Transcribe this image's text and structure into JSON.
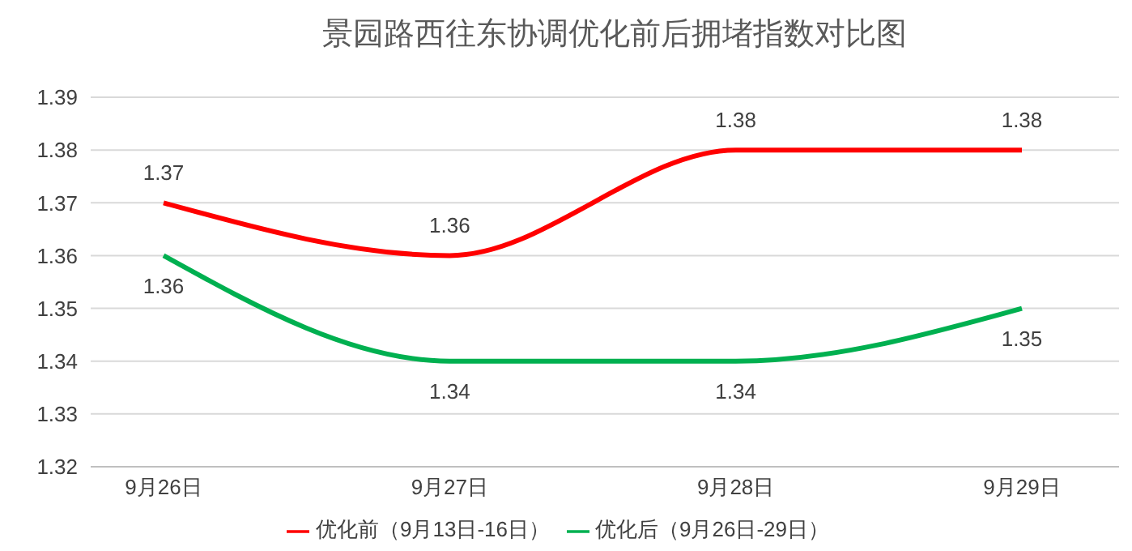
{
  "chart_data": {
    "type": "line",
    "title": "景园路西往东协调优化前后拥堵指数对比图",
    "categories": [
      "9月26日",
      "9月27日",
      "9月28日",
      "9月29日"
    ],
    "series": [
      {
        "name": "优化前（9月13日-16日）",
        "color": "#ff0000",
        "values": [
          1.37,
          1.36,
          1.38,
          1.38
        ]
      },
      {
        "name": "优化后（9月26日-29日）",
        "color": "#00b050",
        "values": [
          1.36,
          1.34,
          1.34,
          1.35
        ]
      }
    ],
    "ylim": [
      1.32,
      1.39
    ],
    "yticks": [
      1.32,
      1.33,
      1.34,
      1.35,
      1.36,
      1.37,
      1.38,
      1.39
    ],
    "grid": "y",
    "legend": "bottom",
    "data_labels": true,
    "marker": "none"
  }
}
